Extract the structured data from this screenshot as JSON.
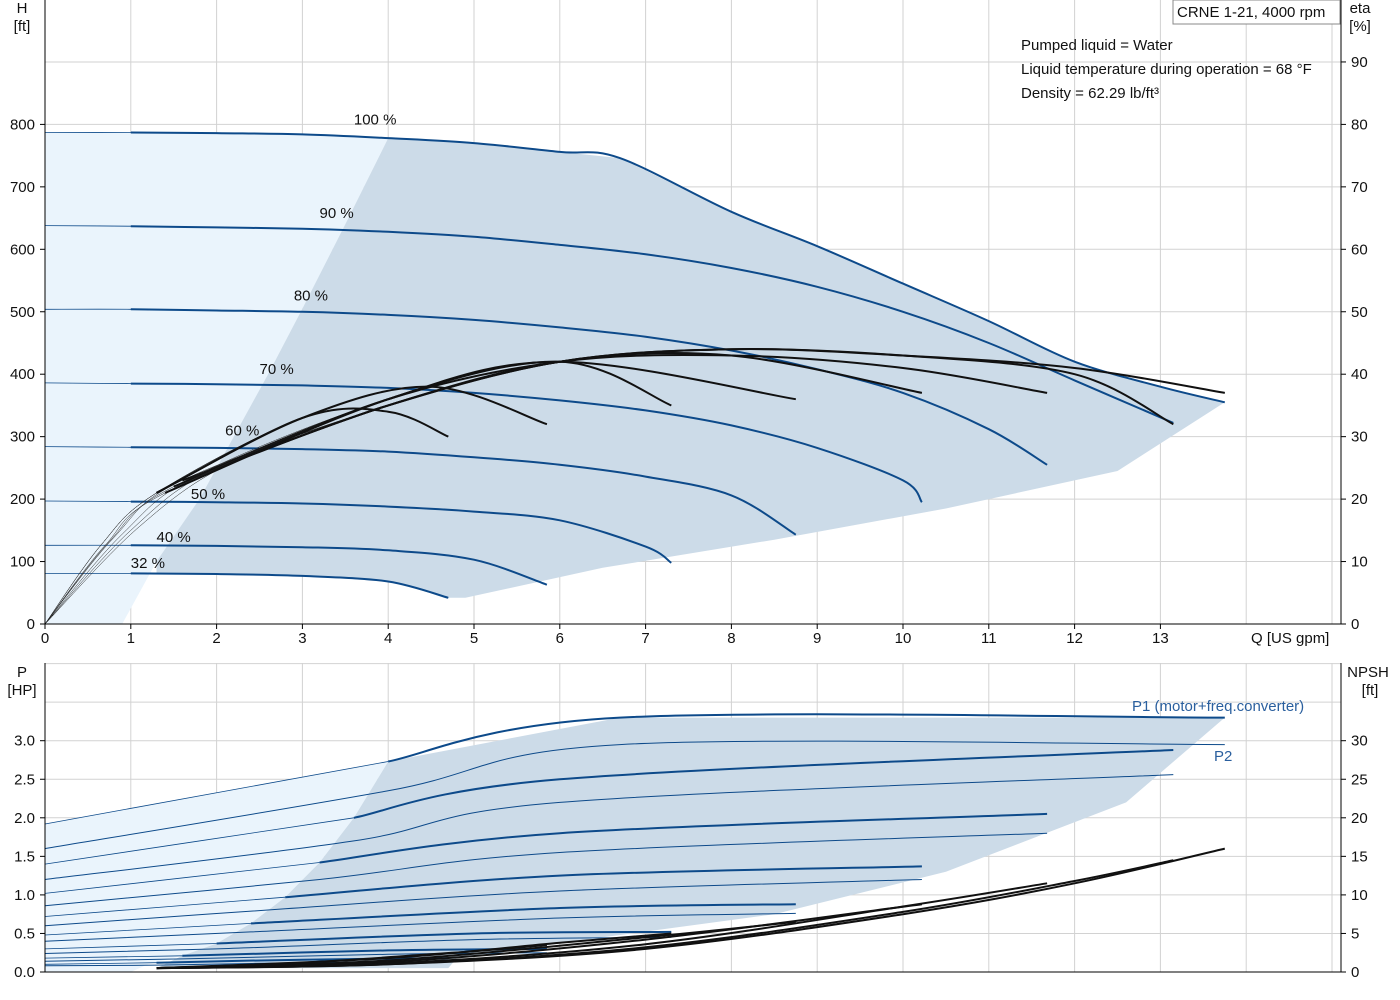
{
  "colors": {
    "grid": "#d2d2d2",
    "curve": "#0d4a8a",
    "area_light": "#eaf4fc",
    "area_dark": "#ccdbe8",
    "eff": "#111111",
    "legend_blue": "#2a5f9e"
  },
  "header": {
    "title": "CRNE 1-21, 4000 rpm",
    "info": [
      "Pumped liquid = Water",
      "Liquid temperature during operation = 68 °F",
      "Density = 62.29 lb/ft³"
    ]
  },
  "chart_data": [
    {
      "type": "line",
      "title": "",
      "xlabel": "Q [US gpm]",
      "ylabel_left_top": "H",
      "ylabel_left_unit": "[ft]",
      "ylabel_right_top": "eta",
      "ylabel_right_unit": "[%]",
      "xlim": [
        0,
        15
      ],
      "ylim": [
        0,
        800
      ],
      "y2lim": [
        0,
        80
      ],
      "x_ticks": [
        "0",
        "1",
        "2",
        "3",
        "4",
        "5",
        "6",
        "7",
        "8",
        "9",
        "10",
        "11",
        "12",
        "13"
      ],
      "y_ticks": [
        "0",
        "100",
        "200",
        "300",
        "400",
        "500",
        "600",
        "700",
        "800"
      ],
      "y2_ticks": [
        "0",
        "10",
        "20",
        "30",
        "40",
        "50",
        "60",
        "70",
        "80",
        "90"
      ],
      "speed_labels": [
        "100 %",
        "90 %",
        "80 %",
        "70 %",
        "60 %",
        "50 %",
        "40 %",
        "32 %"
      ],
      "speed_fractions": [
        1.0,
        0.9,
        0.8,
        0.7,
        0.6,
        0.5,
        0.4,
        0.32
      ],
      "head_curves": [
        {
          "name": "100 %",
          "x": [
            0,
            1,
            2,
            3,
            4,
            5,
            6,
            6.7,
            8,
            9,
            10,
            11,
            12,
            13,
            13.75
          ],
          "y": [
            787,
            787,
            786,
            784,
            778,
            770,
            756,
            746,
            660,
            605,
            545,
            485,
            420,
            380,
            355
          ]
        },
        {
          "name": "90 %",
          "x": [
            0,
            1,
            2,
            3,
            4,
            5,
            6,
            7,
            8,
            9,
            10,
            11,
            12,
            13.15
          ],
          "y": [
            638,
            637,
            635,
            633,
            628,
            620,
            607,
            592,
            570,
            540,
            500,
            450,
            390,
            322
          ]
        },
        {
          "name": "80 %",
          "x": [
            0,
            1,
            2,
            3,
            4,
            5,
            6,
            7,
            8,
            9,
            10,
            11,
            11.68
          ],
          "y": [
            504,
            504,
            502,
            500,
            495,
            487,
            475,
            460,
            438,
            408,
            370,
            312,
            255
          ]
        },
        {
          "name": "70 %",
          "x": [
            0,
            1,
            2,
            3,
            4,
            5,
            6,
            7,
            8,
            9,
            10,
            10.22
          ],
          "y": [
            386,
            385,
            384,
            382,
            378,
            370,
            358,
            342,
            318,
            282,
            230,
            195
          ]
        },
        {
          "name": "60 %",
          "x": [
            0,
            1,
            2,
            3,
            4,
            5,
            6,
            7,
            8,
            8.75
          ],
          "y": [
            284,
            283,
            282,
            280,
            276,
            267,
            255,
            236,
            206,
            143
          ]
        },
        {
          "name": "50 %",
          "x": [
            0,
            1,
            2,
            3,
            4,
            5,
            6,
            7,
            7.3
          ],
          "y": [
            197,
            196,
            195,
            193,
            188,
            180,
            166,
            124,
            98
          ]
        },
        {
          "name": "40 %",
          "x": [
            0,
            1,
            2,
            3,
            4,
            5,
            5.85
          ],
          "y": [
            126,
            126,
            125,
            123,
            118,
            103,
            63
          ]
        },
        {
          "name": "32 %",
          "x": [
            0,
            1,
            2,
            3,
            4,
            4.7
          ],
          "y": [
            81,
            81,
            80,
            77,
            68,
            42
          ]
        }
      ],
      "efficiency_curves": [
        {
          "name": "eta 100 %",
          "x": [
            2.2,
            4,
            6,
            8,
            10,
            12,
            13.75
          ],
          "y": [
            26,
            35,
            42,
            44,
            43,
            41,
            37
          ]
        },
        {
          "name": "eta 90 %",
          "x": [
            2,
            4,
            6,
            8,
            10,
            12,
            13.15
          ],
          "y": [
            25,
            35,
            42,
            44,
            43,
            40,
            32
          ]
        },
        {
          "name": "eta 80 %",
          "x": [
            1.8,
            4,
            6,
            8,
            10,
            11.68
          ],
          "y": [
            24,
            36,
            42,
            43,
            41,
            37
          ]
        },
        {
          "name": "eta 70 %",
          "x": [
            1.6,
            4,
            6,
            8,
            10.22
          ],
          "y": [
            23,
            35,
            42,
            43,
            37
          ]
        },
        {
          "name": "eta 60 %",
          "x": [
            1.5,
            4,
            6,
            8.75
          ],
          "y": [
            22,
            36,
            42,
            36
          ]
        },
        {
          "name": "eta 50 %",
          "x": [
            1.4,
            4,
            6,
            7.3
          ],
          "y": [
            21,
            36,
            42,
            35
          ]
        },
        {
          "name": "eta 40 %",
          "x": [
            1.3,
            3,
            4.5,
            5.85
          ],
          "y": [
            21,
            33,
            38,
            32
          ]
        },
        {
          "name": "eta 32 %",
          "x": [
            1.3,
            3,
            4,
            4.7
          ],
          "y": [
            21,
            33,
            34,
            30
          ]
        }
      ]
    },
    {
      "type": "line",
      "title": "",
      "ylabel_left_top": "P",
      "ylabel_left_unit": "[HP]",
      "ylabel_right_top": "NPSH",
      "ylabel_right_unit": "[ft]",
      "xlim": [
        0,
        15
      ],
      "ylim": [
        0,
        3.5
      ],
      "y2lim": [
        0,
        35
      ],
      "y_ticks": [
        "0.0",
        "0.5",
        "1.0",
        "1.5",
        "2.0",
        "2.5",
        "3.0"
      ],
      "y2_ticks": [
        "0",
        "5",
        "10",
        "15",
        "20",
        "25",
        "30"
      ],
      "legend": [
        "P1 (motor+freq.converter)",
        "P2"
      ],
      "p1_curves": [
        {
          "name": "P1 100 %",
          "x": [
            0,
            4,
            6.7,
            13.75
          ],
          "y": [
            1.92,
            2.73,
            3.3,
            3.3
          ]
        },
        {
          "name": "P1 90 %",
          "x": [
            0,
            3.6,
            6,
            13.15
          ],
          "y": [
            1.4,
            2.0,
            2.5,
            2.88
          ]
        },
        {
          "name": "P1 80 %",
          "x": [
            0,
            3.2,
            6,
            11.68
          ],
          "y": [
            1.02,
            1.42,
            1.8,
            2.05
          ]
        },
        {
          "name": "P1 70 %",
          "x": [
            0,
            2.8,
            6,
            10.22
          ],
          "y": [
            0.72,
            0.97,
            1.25,
            1.37
          ]
        },
        {
          "name": "P1 60 %",
          "x": [
            0,
            2.4,
            6,
            8.75
          ],
          "y": [
            0.48,
            0.63,
            0.83,
            0.88
          ]
        },
        {
          "name": "P1 50 %",
          "x": [
            0,
            2,
            5,
            7.3
          ],
          "y": [
            0.3,
            0.37,
            0.5,
            0.52
          ]
        },
        {
          "name": "P1 40 %",
          "x": [
            0,
            1.6,
            4,
            5.85
          ],
          "y": [
            0.18,
            0.21,
            0.28,
            0.3
          ]
        },
        {
          "name": "P1 32 %",
          "x": [
            0,
            1.3,
            3,
            4.7
          ],
          "y": [
            0.1,
            0.12,
            0.16,
            0.18
          ]
        }
      ],
      "p2_curves": [
        {
          "name": "P2 100 %",
          "x": [
            0,
            4,
            6.7,
            13.75
          ],
          "y": [
            1.6,
            2.35,
            2.95,
            2.95
          ]
        },
        {
          "name": "P2 90 %",
          "x": [
            0,
            3.6,
            6,
            13.15
          ],
          "y": [
            1.2,
            1.7,
            2.2,
            2.56
          ]
        },
        {
          "name": "P2 80 %",
          "x": [
            0,
            3.2,
            6,
            11.68
          ],
          "y": [
            0.86,
            1.2,
            1.55,
            1.8
          ]
        },
        {
          "name": "P2 70 %",
          "x": [
            0,
            2.8,
            6,
            10.22
          ],
          "y": [
            0.6,
            0.82,
            1.05,
            1.2
          ]
        },
        {
          "name": "P2 60 %",
          "x": [
            0,
            2.4,
            6,
            8.75
          ],
          "y": [
            0.4,
            0.52,
            0.7,
            0.76
          ]
        },
        {
          "name": "P2 50 %",
          "x": [
            0,
            2,
            5,
            7.3
          ],
          "y": [
            0.24,
            0.3,
            0.42,
            0.45
          ]
        },
        {
          "name": "P2 40 %",
          "x": [
            0,
            1.6,
            4,
            5.85
          ],
          "y": [
            0.14,
            0.17,
            0.23,
            0.25
          ]
        },
        {
          "name": "P2 32 %",
          "x": [
            0,
            1.3,
            3,
            4.7
          ],
          "y": [
            0.08,
            0.09,
            0.12,
            0.13
          ]
        }
      ],
      "npsh_curves": [
        {
          "name": "NPSH 100 %",
          "x": [
            1.3,
            4,
            7,
            10,
            12,
            13.75
          ],
          "y": [
            0.5,
            1.0,
            3.0,
            7.5,
            11.5,
            16
          ]
        },
        {
          "name": "NPSH 90 %",
          "x": [
            1.3,
            4,
            7,
            10,
            12,
            13.15
          ],
          "y": [
            0.5,
            1.0,
            3.2,
            7.8,
            11.8,
            14.5
          ]
        },
        {
          "name": "NPSH 80 %",
          "x": [
            1.3,
            4,
            7,
            10,
            11.68
          ],
          "y": [
            0.5,
            1.1,
            3.6,
            8.5,
            11.5
          ]
        },
        {
          "name": "NPSH 70 %",
          "x": [
            1.3,
            4,
            7,
            10.22
          ],
          "y": [
            0.5,
            1.3,
            4.2,
            8.8
          ]
        },
        {
          "name": "NPSH 60 %",
          "x": [
            1.3,
            4,
            7,
            8.75
          ],
          "y": [
            0.5,
            1.5,
            4.5,
            6.5
          ]
        },
        {
          "name": "NPSH 50 %",
          "x": [
            1.3,
            4,
            6,
            7.3
          ],
          "y": [
            0.5,
            1.8,
            3.8,
            5.0
          ]
        },
        {
          "name": "NPSH 40 %",
          "x": [
            1.3,
            3,
            5,
            5.85
          ],
          "y": [
            0.5,
            1.2,
            2.7,
            3.5
          ]
        }
      ]
    }
  ]
}
